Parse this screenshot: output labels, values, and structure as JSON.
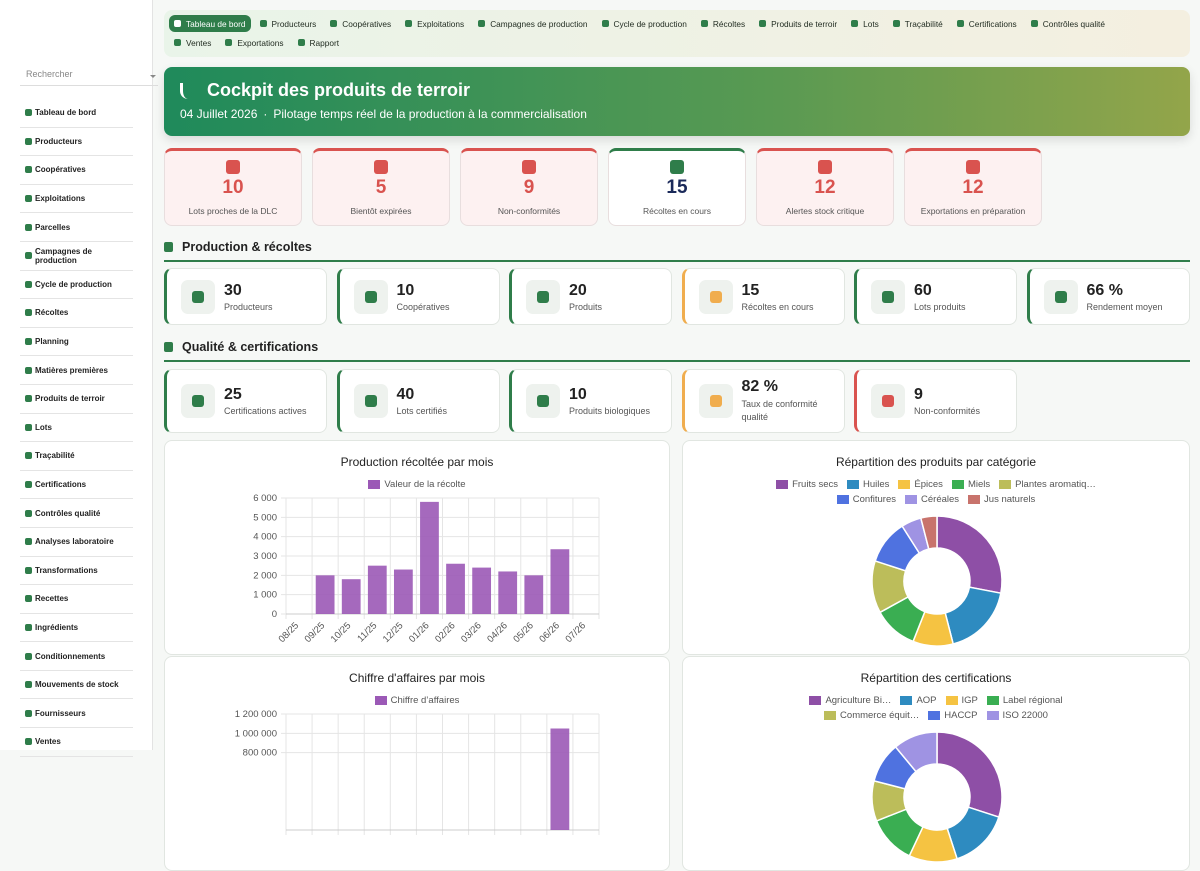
{
  "sidebar": {
    "search_placeholder": "Rechercher",
    "items": [
      "Tableau de bord",
      "Producteurs",
      "Coopératives",
      "Exploitations",
      "Parcelles",
      "Campagnes de production",
      "Cycle de production",
      "Récoltes",
      "Planning",
      "Matières premières",
      "Produits de terroir",
      "Lots",
      "Traçabilité",
      "Certifications",
      "Contrôles qualité",
      "Analyses laboratoire",
      "Transformations",
      "Recettes",
      "Ingrédients",
      "Conditionnements",
      "Mouvements de stock",
      "Fournisseurs",
      "Ventes"
    ]
  },
  "topnav": {
    "items": [
      "Tableau de bord",
      "Producteurs",
      "Coopératives",
      "Exploitations",
      "Campagnes de production",
      "Cycle de production",
      "Récoltes",
      "Produits de terroir",
      "Lots",
      "Traçabilité",
      "Certifications",
      "Contrôles qualité",
      "Ventes",
      "Exportations",
      "Rapport"
    ]
  },
  "hero": {
    "title": "Cockpit des produits de terroir",
    "date": "04 Juillet 2026",
    "separator": "·",
    "tagline": "Pilotage temps réel de la production à la commercialisation"
  },
  "alerts": [
    {
      "value": "10",
      "label": "Lots proches de la DLC"
    },
    {
      "value": "5",
      "label": "Bientôt expirées"
    },
    {
      "value": "9",
      "label": "Non-conformités"
    },
    {
      "value": "15",
      "label": "Récoltes en cours"
    },
    {
      "value": "12",
      "label": "Alertes stock critique"
    },
    {
      "value": "12",
      "label": "Exportations en préparation"
    }
  ],
  "sections": [
    {
      "title": "Production & récoltes",
      "kpis": [
        {
          "value": "30",
          "label": "Producteurs"
        },
        {
          "value": "10",
          "label": "Coopératives"
        },
        {
          "value": "20",
          "label": "Produits"
        },
        {
          "value": "15",
          "label": "Récoltes en cours"
        },
        {
          "value": "60",
          "label": "Lots produits"
        },
        {
          "value": "66 %",
          "label": "Rendement moyen"
        }
      ]
    },
    {
      "title": "Qualité & certifications",
      "kpis": [
        {
          "value": "25",
          "label": "Certifications actives"
        },
        {
          "value": "40",
          "label": "Lots certifiés"
        },
        {
          "value": "10",
          "label": "Produits biologiques"
        },
        {
          "value": "82 %",
          "label": "Taux de conformité qualité"
        },
        {
          "value": "9",
          "label": "Non-conformités"
        }
      ]
    }
  ],
  "chart_data": [
    {
      "type": "bar",
      "title": "Production récoltée par mois",
      "categories": [
        "08/25",
        "09/25",
        "10/25",
        "11/25",
        "12/25",
        "01/26",
        "02/26",
        "03/26",
        "04/26",
        "05/26",
        "06/26",
        "07/26"
      ],
      "series": [
        {
          "name": "Valeur de la récolte",
          "color": "#9b59b6",
          "values": [
            0,
            2000,
            1800,
            2500,
            2300,
            5800,
            2600,
            2400,
            2200,
            2000,
            3350,
            0
          ]
        }
      ],
      "ylim": [
        0,
        6000
      ],
      "yticks": [
        0,
        {
          "value": 1000,
          "label": "1 000"
        },
        {
          "value": 2000,
          "label": "2 000"
        },
        {
          "value": 3000,
          "label": "3 000"
        },
        {
          "value": 4000,
          "label": "4 000"
        },
        {
          "value": 5000,
          "label": "5 000"
        },
        {
          "value": 6000,
          "label": "6 000"
        }
      ],
      "grid": true
    },
    {
      "type": "pie",
      "title": "Répartition des produits par catégorie",
      "donut": true,
      "categories": [
        "Fruits secs",
        "Huiles",
        "Épices",
        "Miels",
        "Plantes aromatiq…",
        "Confitures",
        "Céréales",
        "Jus naturels"
      ],
      "values": [
        28,
        18,
        10,
        11,
        13,
        11,
        5,
        4
      ],
      "colors": [
        "#8e4fa6",
        "#2e8bc0",
        "#f5c342",
        "#3aae52",
        "#bcbd5a",
        "#4f72e0",
        "#9f93e3",
        "#c8736c"
      ]
    },
    {
      "type": "bar",
      "title": "Chiffre d'affaires par mois",
      "categories": [
        null,
        null,
        null,
        null,
        null,
        null,
        null,
        null,
        null,
        null,
        null,
        null
      ],
      "series": [
        {
          "name": "Chiffre d’affaires",
          "color": "#9b59b6",
          "values": [
            null,
            null,
            null,
            null,
            null,
            null,
            null,
            null,
            null,
            null,
            1050000,
            null
          ]
        }
      ],
      "ylim": [
        0,
        1200000
      ],
      "yticks": [
        {
          "value": 800000,
          "label": "800 000"
        },
        {
          "value": 1000000,
          "label": "1 000 000"
        },
        {
          "value": 1200000,
          "label": "1 200 000"
        }
      ],
      "grid": true
    },
    {
      "type": "pie",
      "title": "Répartition des certifications",
      "donut": true,
      "categories": [
        "Agriculture Bi…",
        "AOP",
        "IGP",
        "Label régional",
        "Commerce équit…",
        "HACCP",
        "ISO 22000"
      ],
      "values": [
        30,
        15,
        12,
        12,
        10,
        10,
        11
      ],
      "colors": [
        "#8e4fa6",
        "#2e8bc0",
        "#f5c342",
        "#3aae52",
        "#bcbd5a",
        "#4f72e0",
        "#9f93e3"
      ]
    }
  ]
}
